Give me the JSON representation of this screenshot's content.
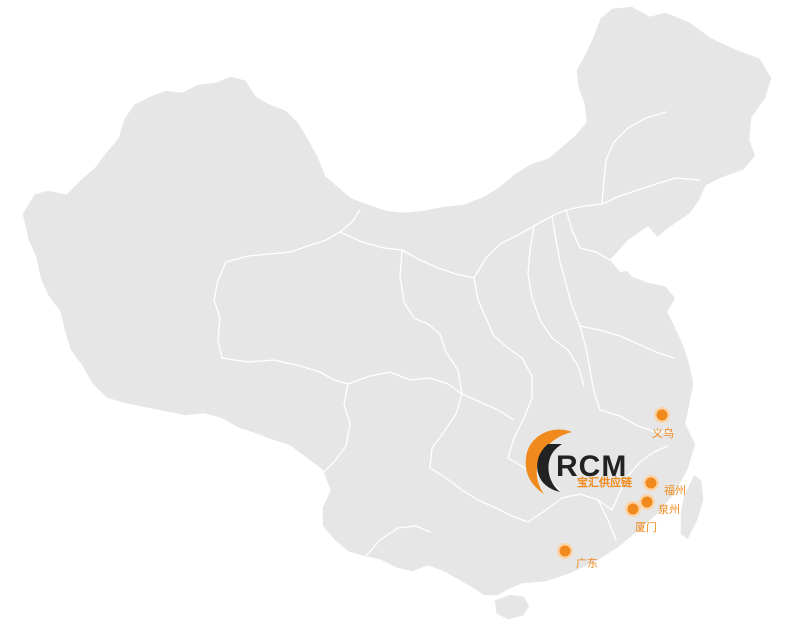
{
  "brand": {
    "wordmark": "RCM",
    "subtitle": "宝汇供应链",
    "accent_color": "#f08a1c",
    "text_color": "#222222"
  },
  "map": {
    "land_color": "#e6e6e6",
    "border_color": "#ffffff"
  },
  "locations": [
    {
      "id": "yiwu",
      "label": "义乌"
    },
    {
      "id": "fuzhou",
      "label": "福州"
    },
    {
      "id": "quanzhou",
      "label": "泉州"
    },
    {
      "id": "xiamen",
      "label": "厦门"
    },
    {
      "id": "guangdong",
      "label": "广东"
    }
  ],
  "marker": {
    "outer_color": "#fbd3a6",
    "inner_color": "#f08a1c"
  }
}
